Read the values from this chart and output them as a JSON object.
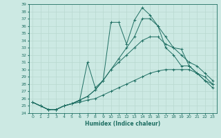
{
  "xlabel": "Humidex (Indice chaleur)",
  "bg_color": "#cce9e3",
  "line_color": "#1e6e62",
  "grid_color": "#b8d8d0",
  "xlim": [
    -0.5,
    23.5
  ],
  "ylim": [
    24,
    39
  ],
  "xticks": [
    0,
    1,
    2,
    3,
    4,
    5,
    6,
    7,
    8,
    9,
    10,
    11,
    12,
    13,
    14,
    15,
    16,
    17,
    18,
    19,
    20,
    21,
    22,
    23
  ],
  "yticks": [
    24,
    25,
    26,
    27,
    28,
    29,
    30,
    31,
    32,
    33,
    34,
    35,
    36,
    37,
    38,
    39
  ],
  "lines": [
    {
      "x": [
        0,
        1,
        2,
        3,
        4,
        5,
        6,
        7,
        8,
        9,
        10,
        11,
        12,
        13,
        14,
        15,
        16,
        17,
        18,
        19,
        20,
        21,
        22,
        23
      ],
      "y": [
        25.5,
        25,
        24.5,
        24.5,
        25,
        25.3,
        25.7,
        31.0,
        27.5,
        28.5,
        36.5,
        36.5,
        33.5,
        36.8,
        38.5,
        37.5,
        36.0,
        33.0,
        32.0,
        30.5,
        30.5,
        29.5,
        29.0,
        28.0
      ]
    },
    {
      "x": [
        0,
        1,
        2,
        3,
        4,
        5,
        6,
        7,
        8,
        9,
        10,
        11,
        12,
        13,
        14,
        15,
        16,
        17,
        18,
        19,
        20,
        21,
        22,
        23
      ],
      "y": [
        25.5,
        25,
        24.5,
        24.5,
        25,
        25.3,
        25.8,
        26.3,
        27.2,
        28.5,
        30.0,
        31.5,
        33.0,
        34.5,
        37.0,
        37.0,
        36.0,
        34.5,
        33.0,
        32.0,
        31.0,
        30.5,
        29.5,
        28.5
      ]
    },
    {
      "x": [
        0,
        1,
        2,
        3,
        4,
        5,
        6,
        7,
        8,
        9,
        10,
        11,
        12,
        13,
        14,
        15,
        16,
        17,
        18,
        19,
        20,
        21,
        22,
        23
      ],
      "y": [
        25.5,
        25,
        24.5,
        24.5,
        25,
        25.3,
        25.8,
        26.3,
        27.2,
        28.5,
        30.0,
        31.0,
        32.0,
        33.0,
        34.0,
        34.5,
        34.5,
        33.5,
        33.0,
        32.8,
        30.5,
        29.5,
        28.5,
        28.0
      ]
    },
    {
      "x": [
        0,
        1,
        2,
        3,
        4,
        5,
        6,
        7,
        8,
        9,
        10,
        11,
        12,
        13,
        14,
        15,
        16,
        17,
        18,
        19,
        20,
        21,
        22,
        23
      ],
      "y": [
        25.5,
        25,
        24.5,
        24.5,
        25,
        25.3,
        25.5,
        25.8,
        26.0,
        26.5,
        27.0,
        27.5,
        28.0,
        28.5,
        29.0,
        29.5,
        29.8,
        30.0,
        30.0,
        30.0,
        30.0,
        29.5,
        28.5,
        27.5
      ]
    }
  ]
}
